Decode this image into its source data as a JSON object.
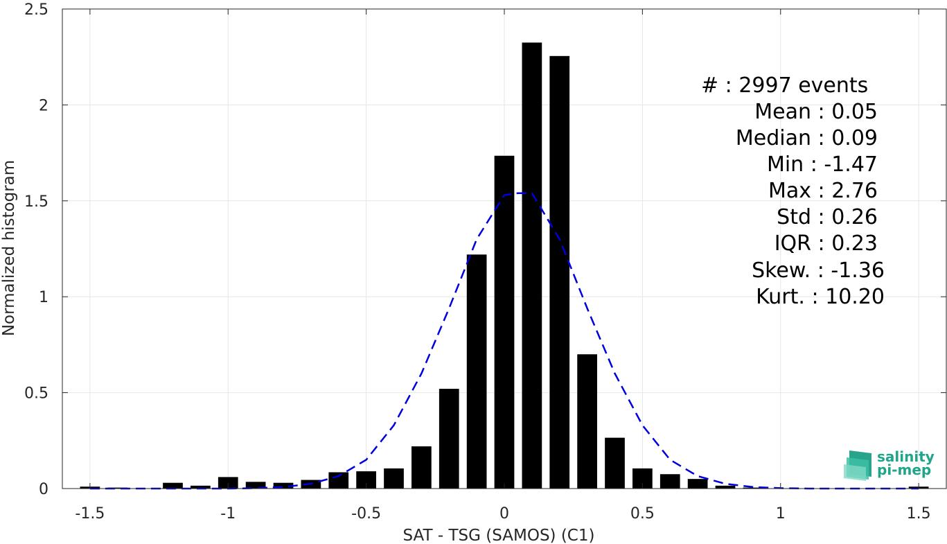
{
  "chart_data": {
    "type": "bar",
    "xlabel": "SAT - TSG (SAMOS) (C1)",
    "ylabel": "Normalized histogram",
    "xlim": [
      -1.6,
      1.6
    ],
    "ylim": [
      0,
      2.5
    ],
    "xticks": [
      -1.5,
      -1,
      -0.5,
      0,
      0.5,
      1,
      1.5
    ],
    "xtick_labels": [
      "-1.5",
      "-1",
      "-0.5",
      "0",
      "0.5",
      "1",
      "1.5"
    ],
    "yticks": [
      0,
      0.5,
      1,
      1.5,
      2,
      2.5
    ],
    "ytick_labels": [
      "0",
      "0.5",
      "1",
      "1.5",
      "2",
      "2.5"
    ],
    "grid": true,
    "bar_color": "#000000",
    "bar_width": 0.072,
    "x": [
      -1.5,
      -1.4,
      -1.3,
      -1.2,
      -1.1,
      -1.0,
      -0.9,
      -0.8,
      -0.7,
      -0.6,
      -0.5,
      -0.4,
      -0.3,
      -0.2,
      -0.1,
      0.0,
      0.1,
      0.2,
      0.3,
      0.4,
      0.5,
      0.6,
      0.7,
      0.8,
      0.9,
      1.0,
      1.1,
      1.2,
      1.3,
      1.4,
      1.5
    ],
    "values": [
      0.01,
      0.005,
      0.0,
      0.03,
      0.015,
      0.06,
      0.035,
      0.03,
      0.045,
      0.085,
      0.09,
      0.105,
      0.22,
      0.52,
      1.22,
      1.735,
      2.325,
      2.255,
      0.7,
      0.265,
      0.105,
      0.075,
      0.05,
      0.015,
      0.005,
      0.0,
      0.0,
      0.0,
      0.0,
      0.0,
      0.01
    ],
    "fit_curve": {
      "style": "dashed",
      "color": "#0000dd",
      "x": [
        -1.5,
        -1.4,
        -1.3,
        -1.2,
        -1.1,
        -1.0,
        -0.9,
        -0.8,
        -0.7,
        -0.6,
        -0.5,
        -0.4,
        -0.3,
        -0.2,
        -0.1,
        0.0,
        0.05,
        0.1,
        0.2,
        0.3,
        0.4,
        0.5,
        0.6,
        0.7,
        0.8,
        0.9,
        1.0,
        1.1,
        1.2,
        1.3,
        1.4,
        1.5
      ],
      "y": [
        0.0,
        0.0,
        0.0,
        0.0,
        0.0,
        0.0,
        0.002,
        0.008,
        0.025,
        0.065,
        0.15,
        0.33,
        0.6,
        0.94,
        1.3,
        1.53,
        1.54,
        1.54,
        1.3,
        0.94,
        0.6,
        0.33,
        0.15,
        0.065,
        0.025,
        0.008,
        0.002,
        0.0,
        0.0,
        0.0,
        0.0,
        0.0
      ]
    }
  },
  "stats": [
    "#  : 2997 events",
    "Mean : 0.05",
    "Median : 0.09",
    "Min : -1.47",
    "Max : 2.76",
    "Std : 0.26",
    "IQR : 0.23",
    "Skew. : -1.36",
    "Kurt. : 10.20"
  ],
  "logo": {
    "line1": "salinity",
    "line2": "pi-mep",
    "color": "#1fa58a"
  }
}
